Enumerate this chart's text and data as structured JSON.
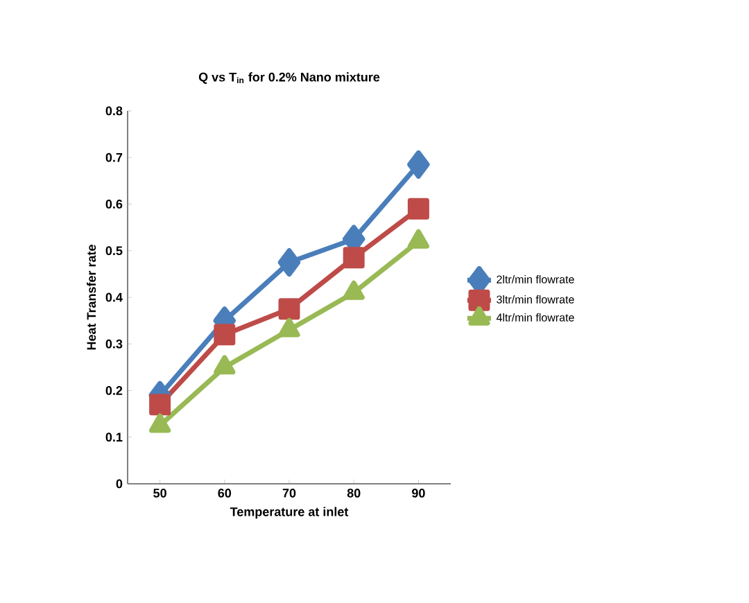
{
  "chart_data": {
    "type": "line",
    "title": "Q vs T$_{in}$ for 0.2% Nano mixture",
    "xlabel": "Temperature at inlet",
    "ylabel": "Heat Transfer rate",
    "categories": [
      "50",
      "60",
      "70",
      "80",
      "90"
    ],
    "series": [
      {
        "name": "2ltr/min flowrate",
        "color": "#4a7ebb",
        "marker": "diamond",
        "values": [
          0.19,
          0.35,
          0.475,
          0.525,
          0.685
        ]
      },
      {
        "name": "3ltr/min flowrate",
        "color": "#be4b48",
        "marker": "square",
        "values": [
          0.17,
          0.32,
          0.375,
          0.485,
          0.59
        ]
      },
      {
        "name": "4ltr/min flowrate",
        "color": "#98b954",
        "marker": "triangle",
        "values": [
          0.125,
          0.25,
          0.33,
          0.41,
          0.52
        ]
      }
    ],
    "ylim": [
      0,
      0.8
    ],
    "yticks": [
      0,
      0.1,
      0.2,
      0.3,
      0.4,
      0.5,
      0.6,
      0.7,
      0.8
    ],
    "grid": false,
    "legend": "right",
    "line_style": "solid"
  }
}
